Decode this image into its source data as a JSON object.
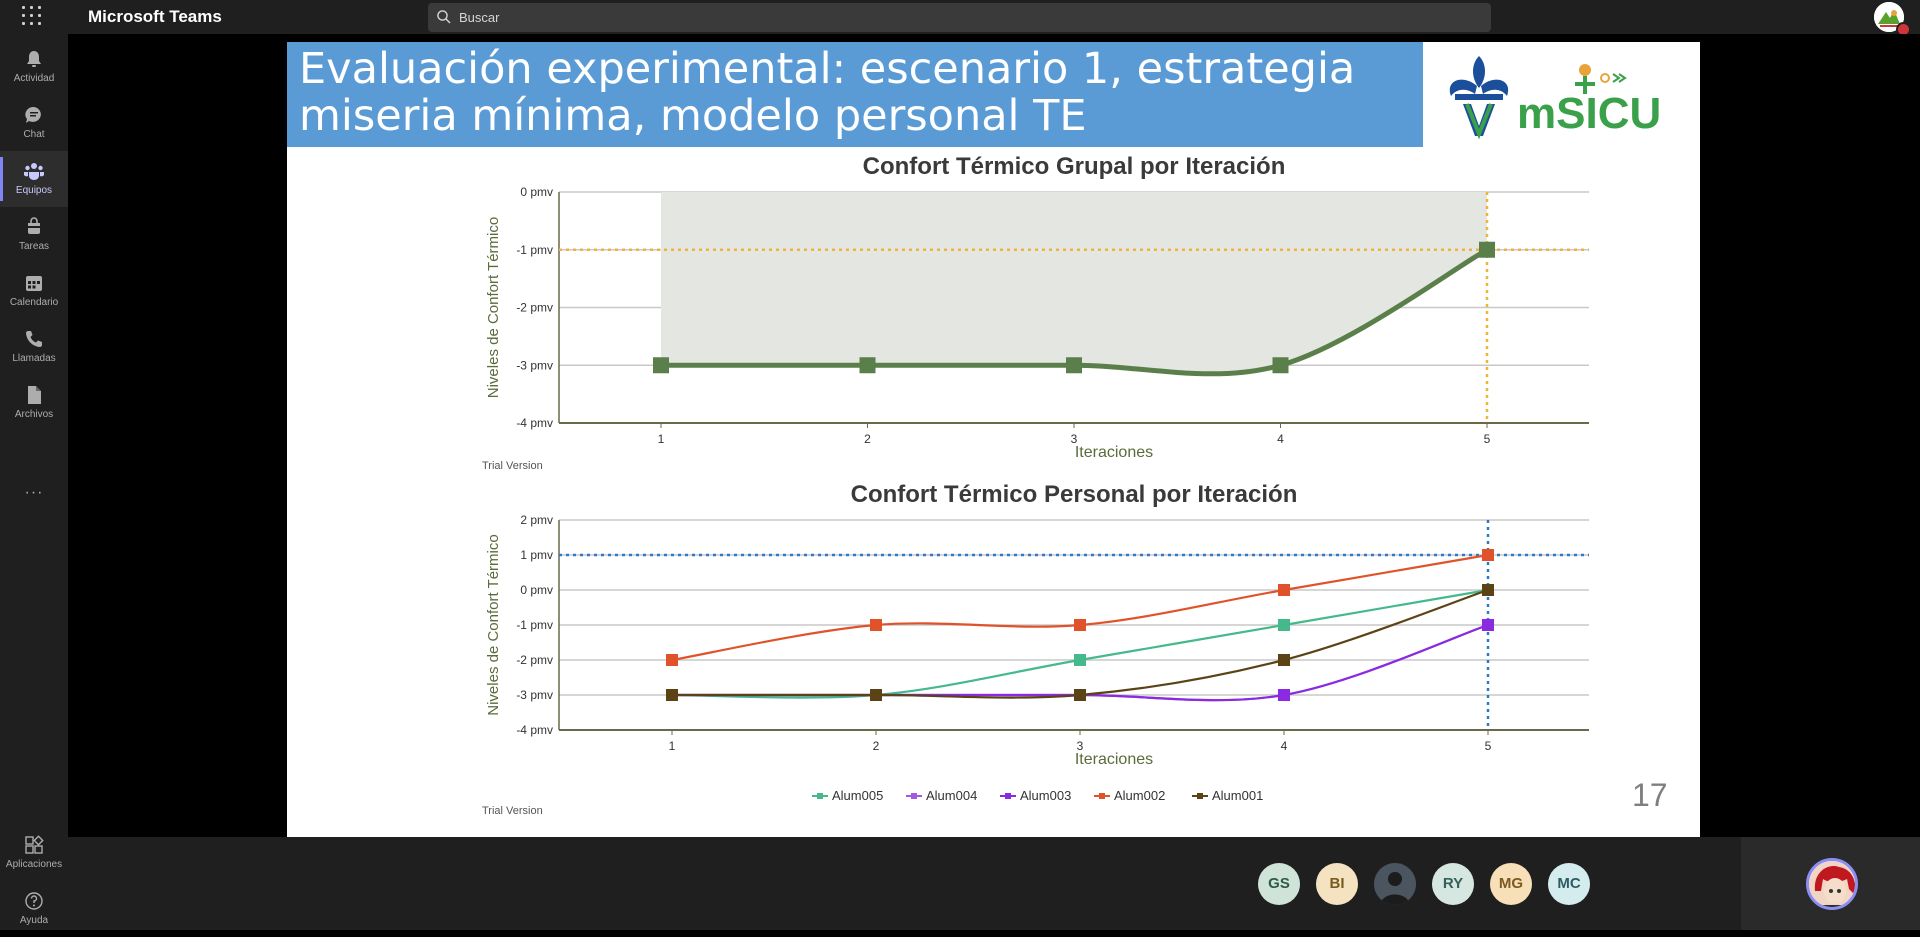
{
  "app": {
    "title": "Microsoft Teams"
  },
  "search": {
    "placeholder": "Buscar"
  },
  "rail": {
    "items": [
      {
        "label": "Actividad",
        "icon": "bell-icon"
      },
      {
        "label": "Chat",
        "icon": "chat-icon"
      },
      {
        "label": "Equipos",
        "icon": "teams-icon",
        "active": true
      },
      {
        "label": "Tareas",
        "icon": "tasks-icon"
      },
      {
        "label": "Calendario",
        "icon": "calendar-icon"
      },
      {
        "label": "Llamadas",
        "icon": "phone-icon"
      },
      {
        "label": "Archivos",
        "icon": "file-icon"
      }
    ],
    "more": "···",
    "bottom": [
      {
        "label": "Aplicaciones",
        "icon": "apps-icon"
      },
      {
        "label": "Ayuda",
        "icon": "help-icon"
      }
    ]
  },
  "slide": {
    "title": "Evaluación experimental: escenario 1, estrategia miseria mínima, modelo personal TE",
    "logo_text": "mSICU",
    "page_number": "17"
  },
  "chart_data": [
    {
      "type": "line",
      "title": "Confort Térmico Grupal por Iteración",
      "xlabel": "Iteraciones",
      "ylabel": "Niveles de Confort Térmico",
      "x": [
        1,
        2,
        3,
        4,
        5
      ],
      "series": [
        {
          "values": [
            -3,
            -3,
            -3,
            -3,
            -1
          ],
          "color": "#5b7f4a"
        }
      ],
      "ytick_labels": [
        "0 pmv",
        "-1 pmv",
        "-2 pmv",
        "-3 pmv",
        "-4 pmv"
      ],
      "ylim": [
        -4,
        0
      ],
      "reference_y": -1,
      "reference_x": 5,
      "watermark": "Trial Version"
    },
    {
      "type": "line",
      "title": "Confort Térmico Personal por Iteración",
      "xlabel": "Iteraciones",
      "ylabel": "Niveles de Confort Térmico",
      "x": [
        1,
        2,
        3,
        4,
        5
      ],
      "series": [
        {
          "name": "Alum005",
          "values": [
            -3,
            -3,
            -2,
            -1,
            0
          ],
          "color": "#45b98c",
          "marker": "square"
        },
        {
          "name": "Alum004",
          "values": [
            -3,
            -3,
            -3,
            -3,
            -1
          ],
          "color": "#a259e0",
          "marker": "square"
        },
        {
          "name": "Alum003",
          "values": [
            -3,
            -3,
            -3,
            -3,
            -1
          ],
          "color": "#8a2be2",
          "marker": "square"
        },
        {
          "name": "Alum002",
          "values": [
            -2,
            -1,
            -1,
            0,
            1
          ],
          "color": "#e0532a",
          "marker": "square"
        },
        {
          "name": "Alum001",
          "values": [
            -3,
            -3,
            -3,
            -2,
            0
          ],
          "color": "#5c4316",
          "marker": "square"
        }
      ],
      "ytick_labels": [
        "2 pmv",
        "1 pmv",
        "0 pmv",
        "-1 pmv",
        "-2 pmv",
        "-3 pmv",
        "-4 pmv"
      ],
      "ylim": [
        -4,
        2
      ],
      "reference_y": 1,
      "reference_x": 5,
      "watermark": "Trial Version"
    }
  ],
  "participants": [
    {
      "initials": "GS",
      "bg": "#cfe3d9",
      "fg": "#2e5b47"
    },
    {
      "initials": "BI",
      "bg": "#f5e2c0",
      "fg": "#7b5a1f"
    },
    {
      "initials": "",
      "bg": "#3a3a3a",
      "fg": "#ffffff",
      "photo": true
    },
    {
      "initials": "RY",
      "bg": "#d6e7e2",
      "fg": "#36605a"
    },
    {
      "initials": "MG",
      "bg": "#f7dfb7",
      "fg": "#7d5a21"
    },
    {
      "initials": "MC",
      "bg": "#d5ecee",
      "fg": "#2d5d63"
    }
  ]
}
